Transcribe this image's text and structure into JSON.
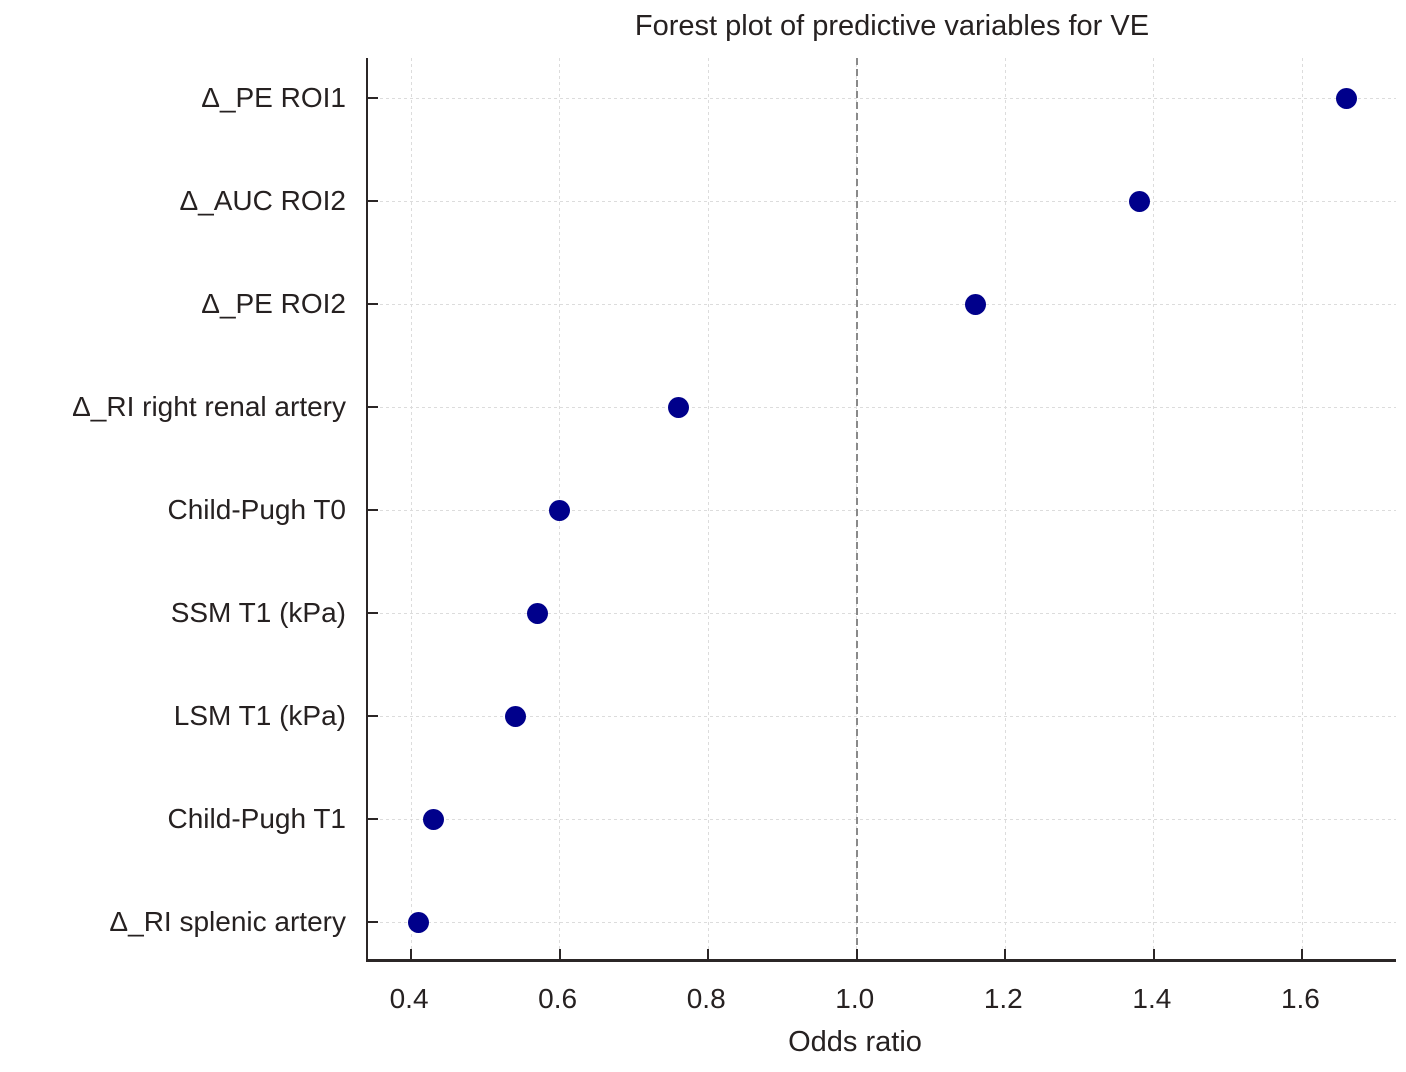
{
  "chart_data": {
    "type": "scatter",
    "title": "Forest plot of predictive variables for VE",
    "xlabel": "Odds ratio",
    "ylabel": "",
    "orientation": "horizontal-dot-plot",
    "categories": [
      "Δ_PE ROI1",
      "Δ_AUC ROI2",
      "Δ_PE ROI2",
      "Δ_RI right renal artery",
      "Child-Pugh T0",
      "SSM T1 (kPa)",
      "LSM T1 (kPa)",
      "Child-Pugh T1",
      "Δ_RI splenic artery"
    ],
    "values": [
      1.66,
      1.38,
      1.16,
      0.76,
      0.6,
      0.57,
      0.54,
      0.43,
      0.41
    ],
    "x_ticks": [
      0.4,
      0.6,
      0.8,
      1.0,
      1.2,
      1.4,
      1.6
    ],
    "x_tick_labels": [
      "0.4",
      "0.6",
      "0.8",
      "1.0",
      "1.2",
      "1.4",
      "1.6"
    ],
    "xlim": [
      0.342,
      1.726
    ],
    "reference_line_x": 1.0,
    "grid": true,
    "grid_style": "dotted",
    "legend": false,
    "colors": {
      "marker": "#00008b",
      "reference_line": "#8a8a8a",
      "gridline": "#dcdcdc",
      "axis": "#2b2626",
      "text": "#262121",
      "background": "#ffffff"
    }
  }
}
